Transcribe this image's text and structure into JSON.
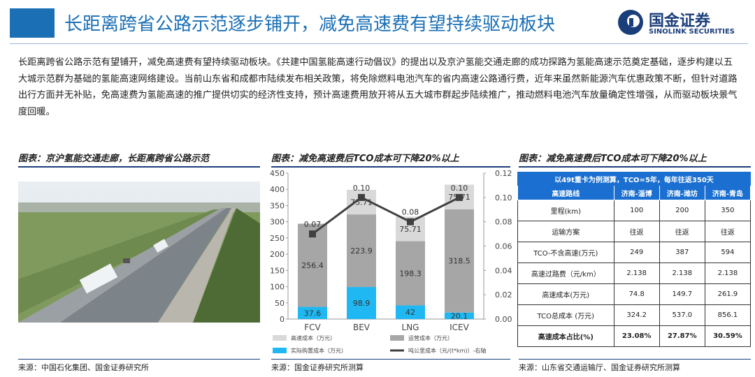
{
  "header": {
    "title": "长距离跨省公路示范逐步铺开，减免高速费有望持续驱动板块",
    "logo_name": "国金证券",
    "logo_subtitle": "SINOLINK SECURITIES"
  },
  "body": "长距离跨省公路示范有望铺开，减免高速费有望持续驱动板块。《共建中国氢能高速行动倡议》的提出以及京沪氢能交通走廊的成功探路为氢能高速示范奠定基础，逐步构建以五大城示范群为基础的氢能高速网络建设。当前山东省和成都市陆续发布相关政策，将免除燃料电池汽车的省内高速公路通行费，近年来虽然新能源汽车优惠政策不断，但针对道路出行方面并无补贴，免高速费为氢能高速的推广提供切实的经济性支持，预计高速费用放开将从五大城市群起步陆续推广，推动燃料电池汽车放量确定性增强，从而驱动板块景气度回暖。",
  "figures": [
    {
      "caption": "图表：京沪氢能交通走廊，长距离跨省公路示范",
      "source": "来源：中国石化集团、国金证券研究所"
    },
    {
      "caption": "图表：减免高速费后TCO成本可下降20%以上",
      "source": "来源：国金证券研究所测算"
    },
    {
      "caption": "图表：减免高速费后TCO成本可下降20%以上",
      "source": "来源：山东省交通运输厅、国金证券研究所测算"
    }
  ],
  "chart_data": {
    "type": "bar",
    "stacked": true,
    "categories": [
      "FCV",
      "BEV",
      "LNG",
      "ICEV"
    ],
    "series": [
      {
        "name": "实际购置成本（万元）",
        "color": "#1fb8f2",
        "values": [
          37.6,
          98.9,
          42.0,
          20.1
        ]
      },
      {
        "name": "运营成本（万元）",
        "color": "#a6a6a6",
        "values": [
          256.4,
          223.9,
          198.3,
          318.5
        ]
      },
      {
        "name": "高速成本（万元）",
        "color": "#d9d9d9",
        "values": [
          0,
          75.71,
          75.71,
          75.71
        ]
      },
      {
        "name": "吨公里成本（元/(t*km)）-右轴",
        "type": "line",
        "axis": "y2",
        "color": "#404040",
        "values": [
          0.07,
          0.1,
          0.08,
          0.1
        ],
        "value_labels": [
          "0.07",
          "0.10",
          "0.08",
          "0.10"
        ]
      }
    ],
    "ylim": [
      0,
      450
    ],
    "yticks": [
      0,
      50,
      100,
      150,
      200,
      250,
      300,
      350,
      400,
      450
    ],
    "y2lim": [
      0,
      0.12
    ],
    "y2ticks": [
      {
        "value": 0,
        "label": "0.00"
      },
      0.02,
      0.04,
      0.06,
      0.08,
      {
        "value": 0.1,
        "label": "0.10"
      },
      0.12
    ],
    "grid": false
  },
  "table": {
    "note": "以49t重卡为例测算，TCO=5年，每年往返350天",
    "columns": [
      "高速路线",
      "济南-淄博",
      "济南-潍坊",
      "济南-青岛"
    ],
    "rows": [
      [
        "里程(km)",
        "100",
        "200",
        "350"
      ],
      [
        "运输方案",
        "往返",
        "往返",
        "往返"
      ],
      [
        "TCO-不含高速(万元)",
        "249",
        "387",
        "594"
      ],
      [
        "高速过路费（元/km）",
        "2.138",
        "2.138",
        "2.138"
      ],
      [
        "高速成本(万元)",
        "74.8",
        "149.7",
        "261.9"
      ],
      [
        "TCO总成本 (万元)",
        "324.2",
        "537.0",
        "856.1"
      ],
      [
        "高速成本占比(%)",
        "23.08%",
        "27.87%",
        "30.59%"
      ]
    ]
  }
}
